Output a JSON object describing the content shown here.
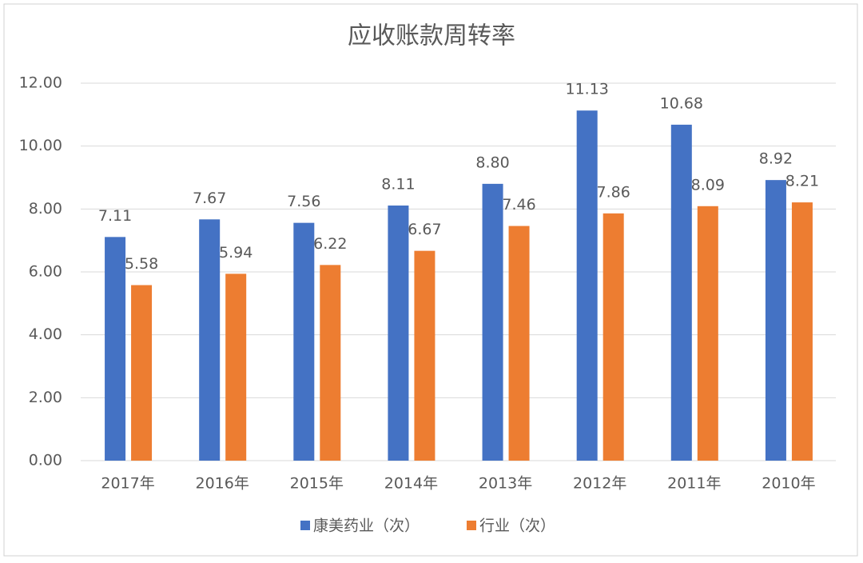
{
  "chart_data": {
    "type": "bar",
    "title": "应收账款周转率",
    "categories": [
      "2017年",
      "2016年",
      "2015年",
      "2014年",
      "2013年",
      "2012年",
      "2011年",
      "2010年"
    ],
    "series": [
      {
        "name": "康美药业（次）",
        "color": "#4472c4",
        "values": [
          7.11,
          7.67,
          7.56,
          8.11,
          8.8,
          11.13,
          10.68,
          8.92
        ],
        "value_labels": [
          "7.11",
          "7.67",
          "7.56",
          "8.11",
          "8.80",
          "11.13",
          "10.68",
          "8.92"
        ]
      },
      {
        "name": "行业（次）",
        "color": "#ed7d31",
        "values": [
          5.58,
          5.94,
          6.22,
          6.67,
          7.46,
          7.86,
          8.09,
          8.21
        ],
        "value_labels": [
          "5.58",
          "5.94",
          "6.22",
          "6.67",
          "7.46",
          "7.86",
          "8.09",
          "8.21"
        ]
      }
    ],
    "ylim": [
      0,
      12
    ],
    "yticks": [
      {
        "value": 0,
        "label": "0.00"
      },
      {
        "value": 2,
        "label": "2.00"
      },
      {
        "value": 4,
        "label": "4.00"
      },
      {
        "value": 6,
        "label": "6.00"
      },
      {
        "value": 8,
        "label": "8.00"
      },
      {
        "value": 10,
        "label": "10.00"
      },
      {
        "value": 12,
        "label": "12.00"
      }
    ],
    "grid": true
  }
}
